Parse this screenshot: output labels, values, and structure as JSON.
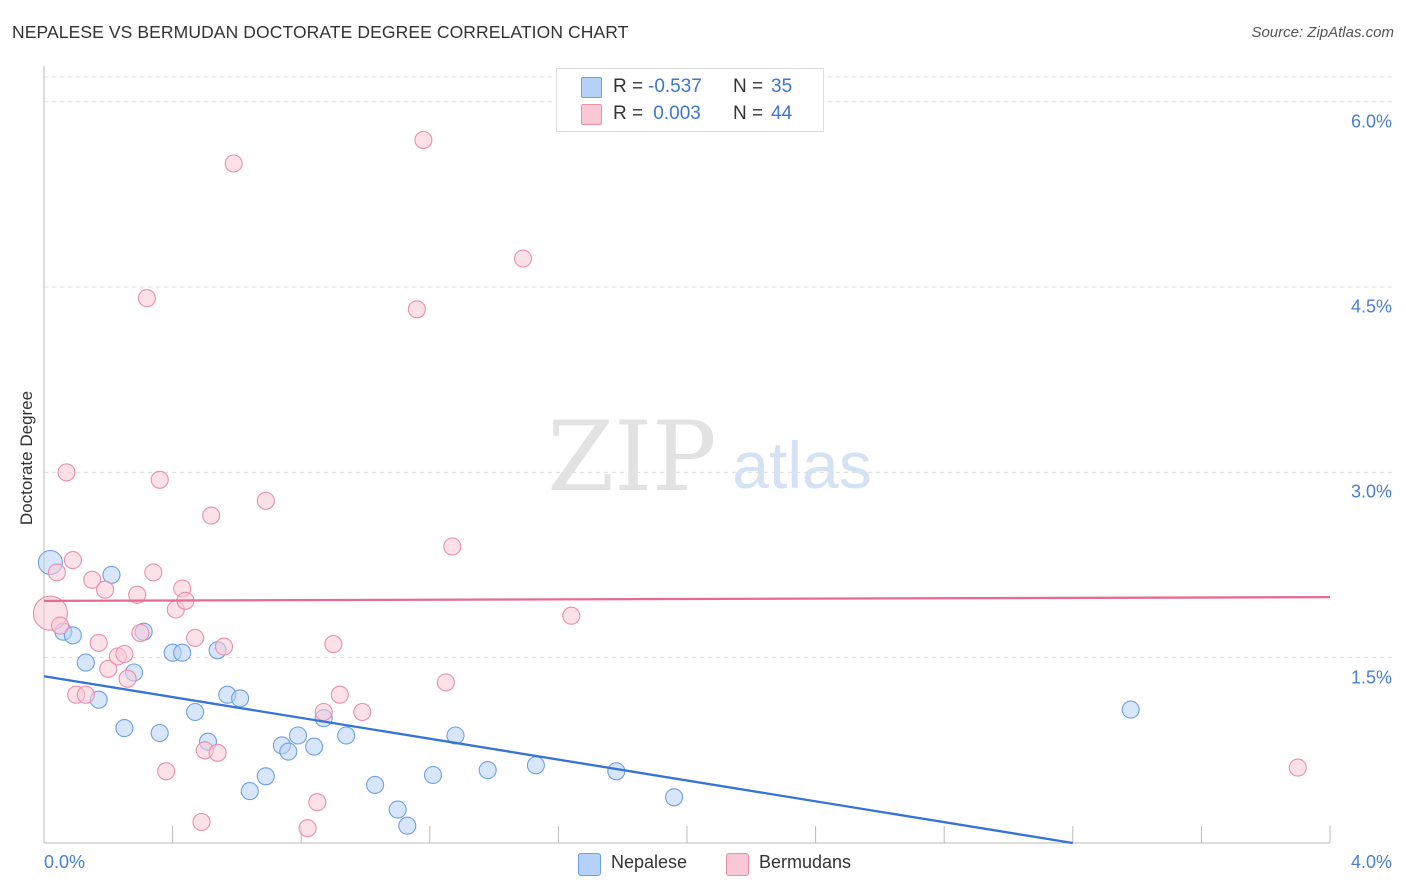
{
  "title": "NEPALESE VS BERMUDAN DOCTORATE DEGREE CORRELATION CHART",
  "source": "Source: ZipAtlas.com",
  "watermark": {
    "zip": "ZIP",
    "atlas": "atlas"
  },
  "stats": [
    {
      "series": "Nepalese",
      "r_label": "R =",
      "r_value": "-0.537",
      "n_label": "N =",
      "n_value": "35"
    },
    {
      "series": "Bermudans",
      "r_label": "R =",
      "r_value": " 0.003",
      "n_label": "N =",
      "n_value": "44"
    }
  ],
  "chart_data": {
    "type": "scatter",
    "title": "NEPALESE VS BERMUDAN DOCTORATE DEGREE CORRELATION CHART",
    "xlabel": "",
    "ylabel": "Doctorate Degree",
    "xlim": [
      0,
      4.0
    ],
    "ylim": [
      0,
      6.2
    ],
    "x_tick_labels": [
      {
        "value": 0,
        "label": "0.0%"
      },
      {
        "value": 4.0,
        "label": "4.0%"
      }
    ],
    "y_tick_labels": [
      {
        "value": 1.5,
        "label": "1.5%"
      },
      {
        "value": 3.0,
        "label": "3.0%"
      },
      {
        "value": 4.5,
        "label": "4.5%"
      },
      {
        "value": 6.0,
        "label": "6.0%"
      }
    ],
    "legend_position": "bottom-center",
    "grid": true,
    "series": [
      {
        "name": "Nepalese",
        "color": "#6ea0e6",
        "fill": "#b6d1f7",
        "trend": {
          "x": [
            0,
            3.2
          ],
          "y": [
            1.35,
            0.0
          ],
          "color": "#3673d4"
        },
        "points": [
          [
            0.02,
            2.27
          ],
          [
            0.06,
            1.71
          ],
          [
            0.09,
            1.68
          ],
          [
            0.13,
            1.46
          ],
          [
            0.17,
            1.16
          ],
          [
            0.21,
            2.17
          ],
          [
            0.25,
            0.93
          ],
          [
            0.28,
            1.38
          ],
          [
            0.31,
            1.71
          ],
          [
            0.36,
            0.89
          ],
          [
            0.4,
            1.54
          ],
          [
            0.43,
            1.54
          ],
          [
            0.47,
            1.06
          ],
          [
            0.51,
            0.82
          ],
          [
            0.54,
            1.56
          ],
          [
            0.57,
            1.2
          ],
          [
            0.61,
            1.17
          ],
          [
            0.64,
            0.42
          ],
          [
            0.69,
            0.54
          ],
          [
            0.74,
            0.79
          ],
          [
            0.76,
            0.74
          ],
          [
            0.79,
            0.87
          ],
          [
            0.84,
            0.78
          ],
          [
            0.87,
            1.01
          ],
          [
            0.94,
            0.87
          ],
          [
            1.03,
            0.47
          ],
          [
            1.1,
            0.27
          ],
          [
            1.13,
            0.14
          ],
          [
            1.21,
            0.55
          ],
          [
            1.28,
            0.87
          ],
          [
            1.38,
            0.59
          ],
          [
            1.53,
            0.63
          ],
          [
            1.78,
            0.58
          ],
          [
            1.96,
            0.37
          ],
          [
            3.38,
            1.08
          ]
        ]
      },
      {
        "name": "Bermudans",
        "color": "#ec8fab",
        "fill": "#f9c8d6",
        "trend": {
          "x": [
            0,
            4.0
          ],
          "y": [
            1.96,
            1.99
          ],
          "color": "#e56b93"
        },
        "points": [
          [
            0.02,
            1.86
          ],
          [
            0.04,
            2.19
          ],
          [
            0.05,
            1.76
          ],
          [
            0.07,
            3.0
          ],
          [
            0.09,
            2.29
          ],
          [
            0.1,
            1.2
          ],
          [
            0.13,
            1.2
          ],
          [
            0.15,
            2.13
          ],
          [
            0.17,
            1.62
          ],
          [
            0.19,
            2.05
          ],
          [
            0.2,
            1.41
          ],
          [
            0.23,
            1.51
          ],
          [
            0.25,
            1.53
          ],
          [
            0.26,
            1.33
          ],
          [
            0.29,
            2.01
          ],
          [
            0.3,
            1.7
          ],
          [
            0.32,
            4.41
          ],
          [
            0.34,
            2.19
          ],
          [
            0.36,
            2.94
          ],
          [
            0.38,
            0.58
          ],
          [
            0.41,
            1.89
          ],
          [
            0.43,
            2.06
          ],
          [
            0.44,
            1.96
          ],
          [
            0.47,
            1.66
          ],
          [
            0.49,
            0.17
          ],
          [
            0.5,
            0.75
          ],
          [
            0.52,
            2.65
          ],
          [
            0.54,
            0.73
          ],
          [
            0.56,
            1.59
          ],
          [
            0.59,
            5.5
          ],
          [
            0.69,
            2.77
          ],
          [
            0.82,
            0.12
          ],
          [
            0.85,
            0.33
          ],
          [
            0.87,
            1.06
          ],
          [
            0.9,
            1.61
          ],
          [
            0.92,
            1.2
          ],
          [
            0.99,
            1.06
          ],
          [
            1.16,
            4.32
          ],
          [
            1.18,
            5.69
          ],
          [
            1.25,
            1.3
          ],
          [
            1.27,
            2.4
          ],
          [
            1.49,
            4.73
          ],
          [
            1.64,
            1.84
          ],
          [
            3.9,
            0.61
          ]
        ]
      }
    ]
  },
  "legend": [
    {
      "label": "Nepalese"
    },
    {
      "label": "Bermudans"
    }
  ]
}
